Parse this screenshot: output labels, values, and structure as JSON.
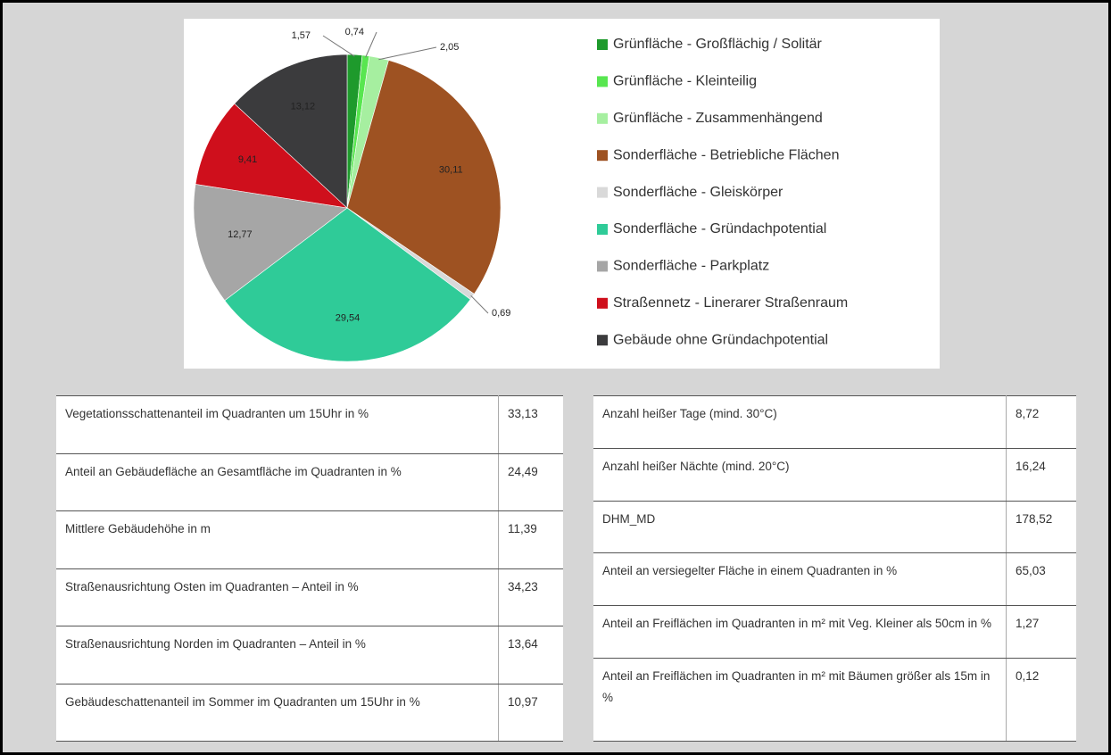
{
  "chart_data": {
    "type": "pie",
    "categories": [
      "Grünfläche - Großflächig / Solitär",
      "Grünfläche - Kleinteilig",
      "Grünfläche - Zusammenhängend",
      "Sonderfläche - Betriebliche Flächen",
      "Sonderfläche - Gleiskörper",
      "Sonderfläche - Gründachpotential",
      "Sonderfläche - Parkplatz",
      "Straßennetz - Linerarer Straßenraum",
      "Gebäude ohne Gründachpotential"
    ],
    "values": [
      1.57,
      0.74,
      2.05,
      30.11,
      0.69,
      29.54,
      12.77,
      9.41,
      13.12
    ],
    "value_labels": [
      "1,57",
      "0,74",
      "2,05",
      "30,11",
      "0,69",
      "29,54",
      "12,77",
      "9,41",
      "13,12"
    ],
    "colors": [
      "#1e9a2c",
      "#58e650",
      "#a6efa0",
      "#9e5222",
      "#d9d9d9",
      "#2fcb98",
      "#a6a6a6",
      "#cf0f1c",
      "#3b3b3d"
    ],
    "legend": "right"
  },
  "tables": [
    {
      "rows": [
        [
          "Vegetationsschattenanteil im Quadranten um 15Uhr in %",
          "33,13"
        ],
        [
          "Anteil an Gebäudefläche an Gesamtfläche im Quadranten in %",
          "24,49"
        ],
        [
          "Mittlere Gebäudehöhe in m",
          "11,39"
        ],
        [
          "Straßenausrichtung Osten im Quadranten – Anteil in %",
          "34,23"
        ],
        [
          "Straßenausrichtung Norden im Quadranten – Anteil in %",
          "13,64"
        ],
        [
          "Gebäudeschattenanteil im Sommer im Quadranten um 15Uhr in %",
          "10,97"
        ]
      ]
    },
    {
      "rows": [
        [
          "Anzahl heißer Tage (mind. 30°C)",
          "8,72"
        ],
        [
          "Anzahl heißer Nächte (mind. 20°C)",
          "16,24"
        ],
        [
          "DHM_MD",
          "178,52"
        ],
        [
          "Anteil an versiegelter Fläche in einem Quadranten in %",
          "65,03"
        ],
        [
          "Anteil an Freiflächen im Quadranten in m² mit Veg. Kleiner als 50cm in %",
          "1,27"
        ],
        [
          "Anteil an Freiflächen im Quadranten in m² mit Bäumen größer als 15m in %",
          "0,12"
        ]
      ]
    }
  ]
}
